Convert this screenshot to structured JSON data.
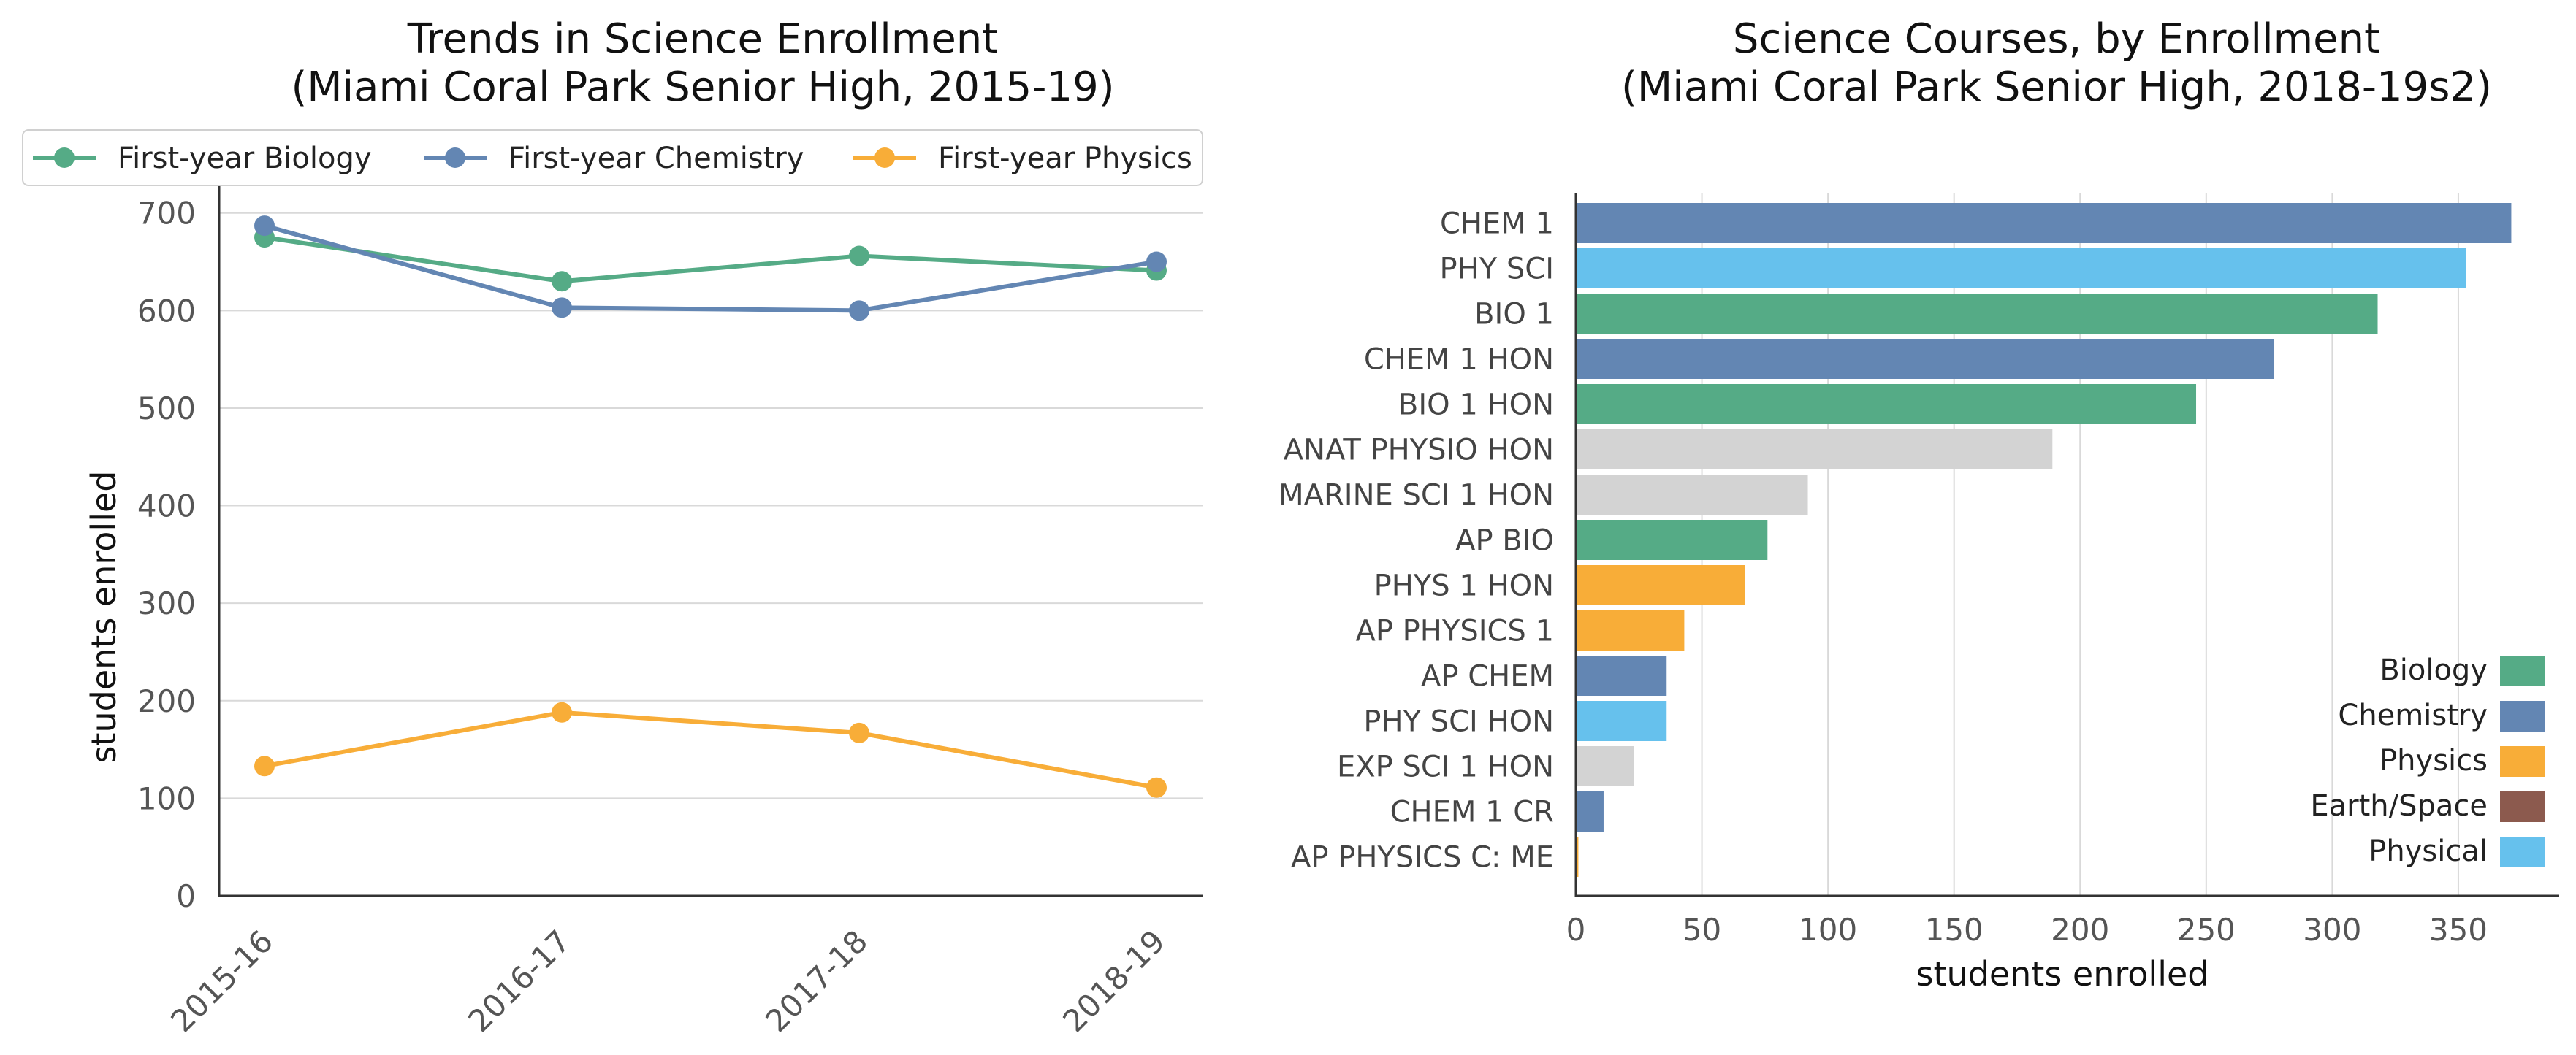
{
  "chart_data": [
    {
      "type": "line",
      "title": [
        "Trends in Science Enrollment",
        "(Miami Coral Park Senior High, 2015-19)"
      ],
      "categories": [
        "2015-16",
        "2016-17",
        "2017-18",
        "2018-19"
      ],
      "ylabel": "students enrolled",
      "xlabel": "",
      "ylim": [
        0,
        720
      ],
      "yticks": [
        0,
        100,
        200,
        300,
        400,
        500,
        600,
        700
      ],
      "grid": "horizontal",
      "legend_position": "top",
      "series": [
        {
          "name": "First-year Biology",
          "color": "#55ab86",
          "values": [
            675,
            630,
            656,
            641
          ]
        },
        {
          "name": "First-year Chemistry",
          "color": "#6386b3",
          "values": [
            687,
            603,
            600,
            650
          ]
        },
        {
          "name": "First-year Physics",
          "color": "#f8ad38",
          "values": [
            133,
            188,
            167,
            111
          ]
        }
      ]
    },
    {
      "type": "bar",
      "orientation": "horizontal",
      "title": [
        "Science Courses, by Enrollment",
        "(Miami Coral Park Senior High, 2018-19s2)"
      ],
      "xlabel": "students enrolled",
      "ylabel": "",
      "xlim": [
        0,
        390
      ],
      "xticks": [
        0,
        50,
        100,
        150,
        200,
        250,
        300,
        350
      ],
      "grid": "vertical",
      "legend_position": "lower-right",
      "bars": [
        {
          "label": "CHEM 1",
          "value": 371,
          "group": "Chemistry"
        },
        {
          "label": "PHY SCI",
          "value": 353,
          "group": "Physical"
        },
        {
          "label": "BIO 1",
          "value": 318,
          "group": "Biology"
        },
        {
          "label": "CHEM 1 HON",
          "value": 277,
          "group": "Chemistry"
        },
        {
          "label": "BIO 1 HON",
          "value": 246,
          "group": "Biology"
        },
        {
          "label": "ANAT PHYSIO HON",
          "value": 189,
          "group": "Other"
        },
        {
          "label": "MARINE SCI 1 HON",
          "value": 92,
          "group": "Other"
        },
        {
          "label": "AP BIO",
          "value": 76,
          "group": "Biology"
        },
        {
          "label": "PHYS 1 HON",
          "value": 67,
          "group": "Physics"
        },
        {
          "label": "AP PHYSICS 1",
          "value": 43,
          "group": "Physics"
        },
        {
          "label": "AP CHEM",
          "value": 36,
          "group": "Chemistry"
        },
        {
          "label": "PHY SCI HON",
          "value": 36,
          "group": "Physical"
        },
        {
          "label": "EXP SCI 1 HON",
          "value": 23,
          "group": "Other"
        },
        {
          "label": "CHEM 1 CR",
          "value": 11,
          "group": "Chemistry"
        },
        {
          "label": "AP PHYSICS C: ME",
          "value": 1,
          "group": "Physics"
        }
      ],
      "legend": [
        {
          "name": "Biology",
          "color": "#55ab86"
        },
        {
          "name": "Chemistry",
          "color": "#6386b3"
        },
        {
          "name": "Physics",
          "color": "#f8ad38"
        },
        {
          "name": "Earth/Space",
          "color": "#8c5a4e"
        },
        {
          "name": "Physical",
          "color": "#66c1ed"
        }
      ],
      "other_color": "#d3d3d3"
    }
  ]
}
